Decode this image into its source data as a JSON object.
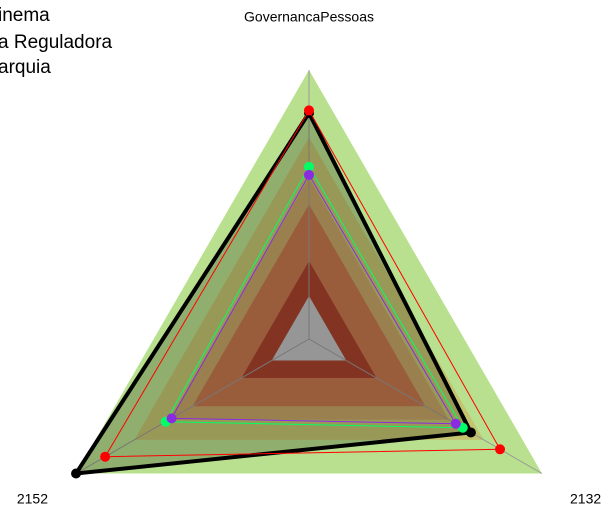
{
  "chart_data": {
    "type": "radar",
    "axes": [
      "GovernancaPessoas",
      "2132",
      "2152"
    ],
    "legend": [
      "inema",
      "a Reguladora",
      "arquia"
    ],
    "rlim": [
      0,
      1
    ],
    "bands": [
      {
        "value": 1.0,
        "color": "#b9e08e"
      },
      {
        "value": 0.75,
        "color": "#c4c470"
      },
      {
        "value": 0.6,
        "color": "#c4a464"
      },
      {
        "value": 0.5,
        "color": "#c4784e"
      },
      {
        "value": 0.29,
        "color": "#a8422c"
      },
      {
        "value": 0.16,
        "color": "#c0c0c0"
      }
    ],
    "series": [
      {
        "color": "#000000",
        "fill": true,
        "values": [
          0.84,
          0.695,
          1.0
        ]
      },
      {
        "color": "#ff0000",
        "values": [
          0.85,
          0.82,
          0.875
        ]
      },
      {
        "color": "#00ff66",
        "values": [
          0.64,
          0.66,
          0.615
        ]
      },
      {
        "color": "#8a2be2",
        "values": [
          0.61,
          0.63,
          0.59
        ]
      }
    ]
  }
}
